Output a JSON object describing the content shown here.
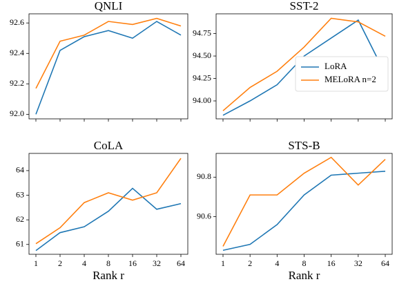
{
  "chart_data": [
    {
      "type": "line",
      "title": "QNLI",
      "categories": [
        null,
        null,
        null,
        null,
        null,
        null,
        null
      ],
      "series": [
        {
          "color": "#1f77b4",
          "values": [
            92.0,
            92.42,
            92.51,
            92.55,
            92.5,
            92.61,
            92.52
          ]
        },
        {
          "color": "#ff7f0e",
          "values": [
            92.17,
            92.48,
            92.52,
            92.61,
            92.59,
            92.63,
            92.58
          ]
        }
      ],
      "ylim": [
        91.97,
        92.66
      ],
      "yticks": [
        {
          "value": 92,
          "label": "92.0"
        },
        92.2,
        92.4,
        92.6
      ]
    },
    {
      "type": "line",
      "title": "SST-2",
      "categories": [
        null,
        null,
        null,
        null,
        null,
        null,
        null
      ],
      "series": [
        {
          "name": "LoRA",
          "color": "#1f77b4",
          "values": [
            93.84,
            94.0,
            94.18,
            94.5,
            94.7,
            94.9,
            94.3
          ]
        },
        {
          "name": "MELoRA n=2",
          "color": "#ff7f0e",
          "values": [
            93.89,
            94.15,
            94.33,
            94.6,
            94.92,
            94.88,
            94.72
          ]
        }
      ],
      "ylim": [
        93.8,
        94.97
      ],
      "yticks": [
        {
          "value": 94,
          "label": "94.00"
        },
        94.25,
        {
          "value": 94.5,
          "label": "94.50"
        },
        94.75
      ],
      "legend": "lower right"
    },
    {
      "type": "line",
      "title": "CoLA",
      "categories": [
        "1",
        "2",
        "4",
        "8",
        "16",
        "32",
        "64"
      ],
      "series": [
        {
          "color": "#1f77b4",
          "values": [
            60.75,
            61.48,
            61.72,
            62.35,
            63.28,
            62.43,
            62.66
          ]
        },
        {
          "color": "#ff7f0e",
          "values": [
            61.03,
            61.68,
            62.7,
            63.1,
            62.8,
            63.1,
            64.5
          ]
        }
      ],
      "ylim": [
        60.6,
        64.7
      ],
      "yticks": [
        61,
        62,
        63,
        64
      ],
      "xlabel": "Rank r"
    },
    {
      "type": "line",
      "title": "STS-B",
      "categories": [
        "1",
        "2",
        "4",
        "8",
        "16",
        "32",
        "64"
      ],
      "series": [
        {
          "color": "#1f77b4",
          "values": [
            90.43,
            90.46,
            90.56,
            90.71,
            90.81,
            90.82,
            90.83
          ]
        },
        {
          "color": "#ff7f0e",
          "values": [
            90.45,
            90.71,
            90.71,
            90.82,
            90.9,
            90.76,
            90.89
          ]
        }
      ],
      "ylim": [
        90.41,
        90.92
      ],
      "yticks": [
        90.6,
        90.8
      ],
      "xlabel": "Rank r"
    }
  ]
}
